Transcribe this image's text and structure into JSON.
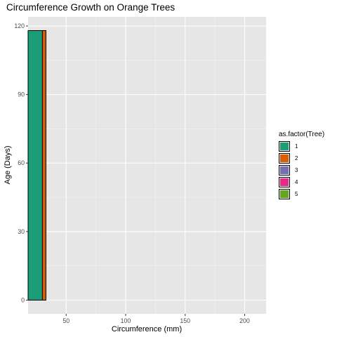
{
  "chart_data": {
    "type": "bar",
    "orientation": "horizontal",
    "title": "Circumference Growth on Orange Trees",
    "xlabel": "Circumference (mm)",
    "ylabel": "Age (Days)",
    "xlim": [
      18,
      218
    ],
    "ylim": [
      -6,
      124
    ],
    "x_ticks": [
      50,
      100,
      150,
      200
    ],
    "y_ticks": [
      0,
      30,
      60,
      90,
      120
    ],
    "grid": true,
    "legend_title": "as.factor(Tree)",
    "legend_position": "right",
    "series": [
      {
        "name": "1",
        "color": "#1B9E77",
        "x": 30,
        "y": 118
      },
      {
        "name": "2",
        "color": "#D95F02",
        "x": 33,
        "y": 118
      },
      {
        "name": "3",
        "color": "#7570B3",
        "x": 30,
        "y": 118
      },
      {
        "name": "4",
        "color": "#E7298A",
        "x": 32,
        "y": 118
      },
      {
        "name": "5",
        "color": "#66A61E",
        "x": 30,
        "y": 118
      }
    ]
  }
}
